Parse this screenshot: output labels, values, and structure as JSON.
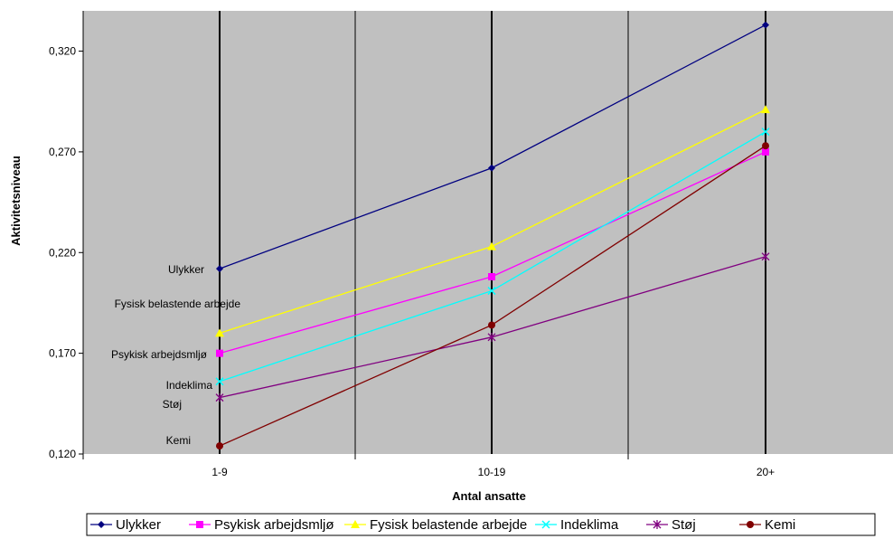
{
  "chart_data": {
    "type": "line",
    "categories": [
      "1-9",
      "10-19",
      "20+"
    ],
    "xlabel": "Antal ansatte",
    "ylabel": "Aktivitetsniveau",
    "ylim": [
      0.12,
      0.34
    ],
    "yticks": [
      "0,120",
      "0,170",
      "0,220",
      "0,270",
      "0,320"
    ],
    "grid": true,
    "legend": "bottom",
    "series": [
      {
        "name": "Ulykker",
        "values": [
          0.212,
          0.262,
          0.333
        ],
        "color": "#000080",
        "marker": "diamond"
      },
      {
        "name": "Psykisk arbejdsmljø",
        "values": [
          0.17,
          0.208,
          0.27
        ],
        "color": "#ff00ff",
        "marker": "square"
      },
      {
        "name": "Fysisk belastende arbejde",
        "values": [
          0.18,
          0.223,
          0.291
        ],
        "color": "#ffff00",
        "marker": "triangle"
      },
      {
        "name": "Indeklima",
        "values": [
          0.156,
          0.201,
          0.28
        ],
        "color": "#00ffff",
        "marker": "x"
      },
      {
        "name": "Støj",
        "values": [
          0.148,
          0.178,
          0.218
        ],
        "color": "#800080",
        "marker": "star"
      },
      {
        "name": "Kemi",
        "values": [
          0.124,
          0.184,
          0.273
        ],
        "color": "#800000",
        "marker": "circle"
      }
    ],
    "annotations": [
      {
        "text": "Ulykker"
      },
      {
        "text": "Fysisk belastende arbejde"
      },
      {
        "text": "Psykisk arbejdsmljø"
      },
      {
        "text": "Indeklima"
      },
      {
        "text": "Støj"
      },
      {
        "text": "Kemi"
      }
    ]
  }
}
